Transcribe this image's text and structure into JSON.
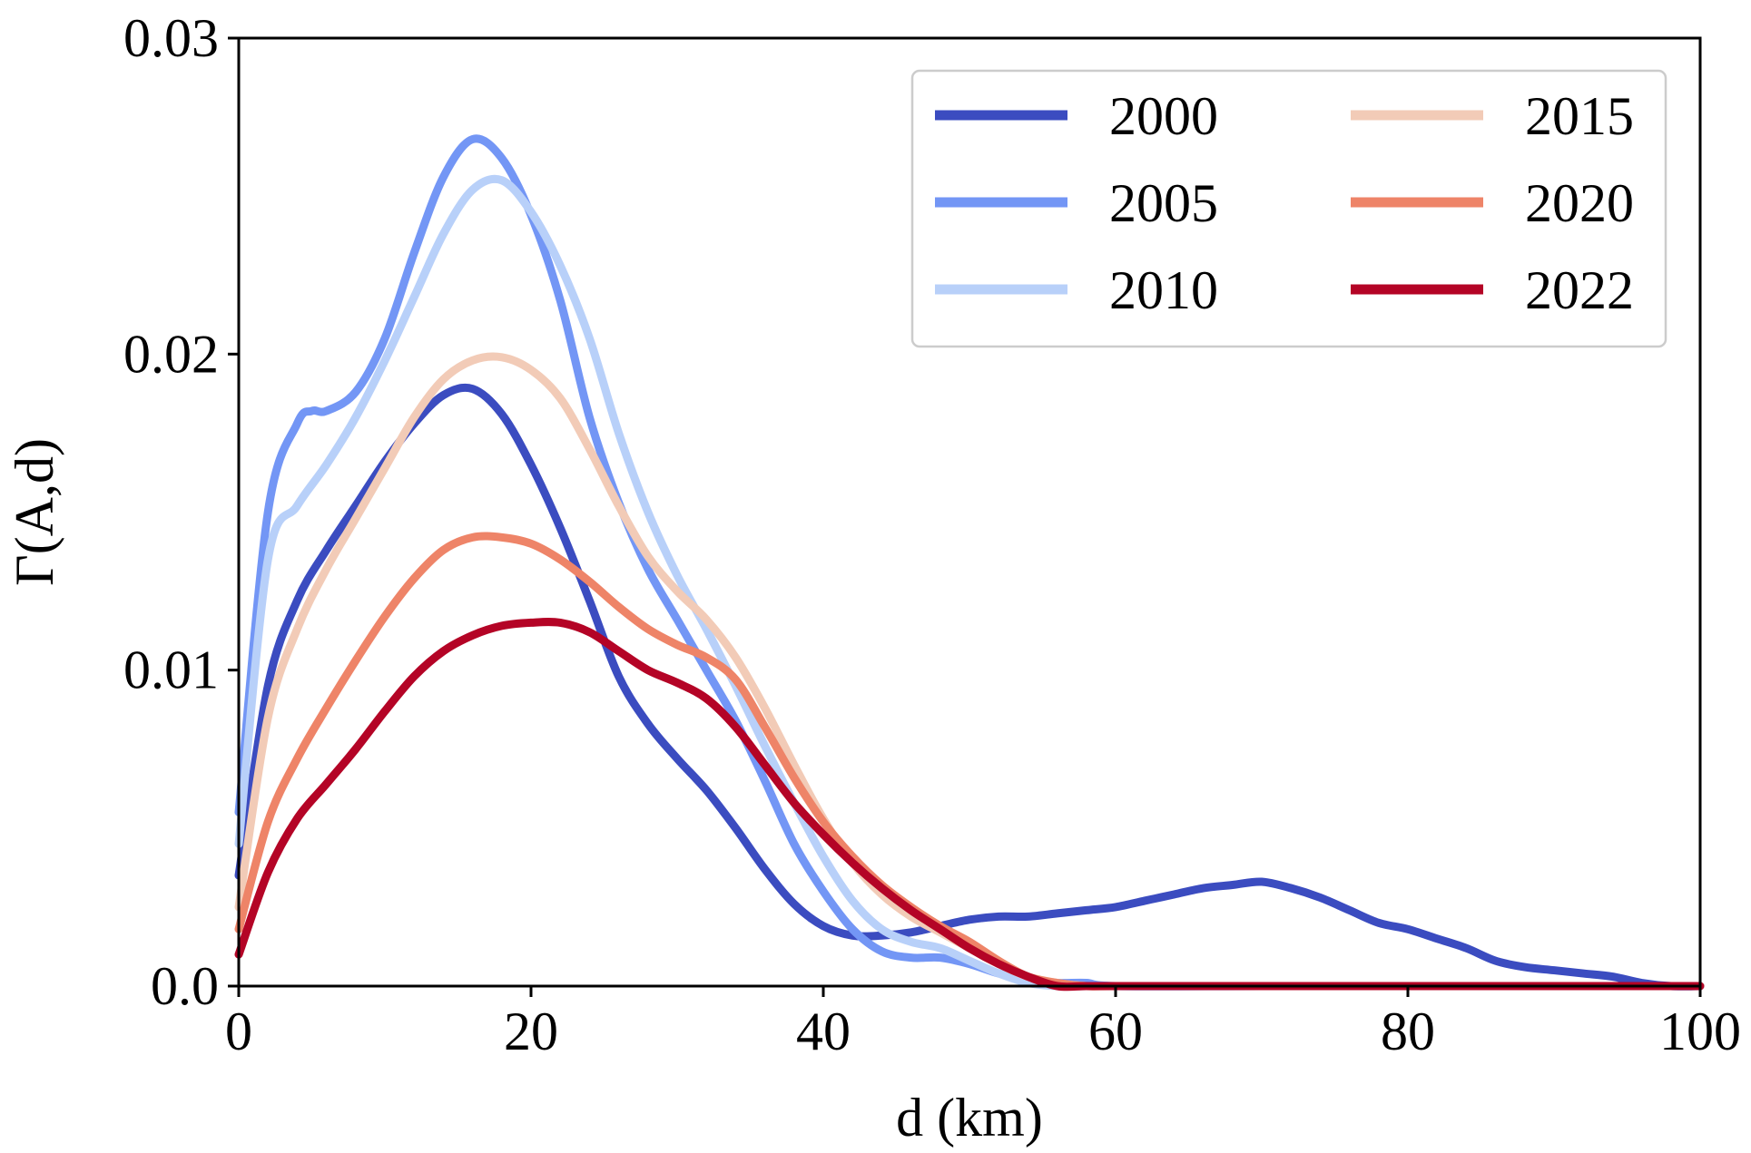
{
  "chart_data": {
    "type": "line",
    "xlabel": "d (km)",
    "ylabel": "Γ(A,d)",
    "xlim": [
      0,
      100
    ],
    "ylim": [
      0,
      0.03
    ],
    "xticks": [
      0,
      20,
      40,
      60,
      80,
      100
    ],
    "xtick_labels": [
      "0",
      "20",
      "40",
      "60",
      "80",
      "100"
    ],
    "yticks": [
      0,
      0.01,
      0.02,
      0.03
    ],
    "ytick_labels": [
      "0.0",
      "0.01",
      "0.02",
      "0.03"
    ],
    "grid": false,
    "legend_position": "top-right",
    "legend_columns": 2,
    "series": [
      {
        "name": "2000",
        "color": "#3b4cc0",
        "x": [
          0,
          2,
          4,
          6,
          8,
          10,
          12,
          14,
          16,
          18,
          20,
          22,
          24,
          26,
          28,
          30,
          32,
          34,
          36,
          38,
          40,
          42,
          44,
          46,
          48,
          50,
          52,
          54,
          56,
          58,
          60,
          62,
          64,
          66,
          68,
          70,
          72,
          74,
          76,
          78,
          80,
          82,
          84,
          86,
          88,
          90,
          92,
          94,
          96,
          98,
          100
        ],
        "values": [
          0.0035,
          0.0095,
          0.0122,
          0.0138,
          0.0152,
          0.0166,
          0.0178,
          0.0187,
          0.0189,
          0.0181,
          0.0165,
          0.0145,
          0.0122,
          0.0098,
          0.0083,
          0.0072,
          0.0062,
          0.005,
          0.0037,
          0.0026,
          0.0019,
          0.0016,
          0.0016,
          0.0017,
          0.0019,
          0.0021,
          0.0022,
          0.0022,
          0.0023,
          0.0024,
          0.0025,
          0.0027,
          0.0029,
          0.0031,
          0.0032,
          0.0033,
          0.0031,
          0.0028,
          0.0024,
          0.002,
          0.0018,
          0.0015,
          0.0012,
          0.0008,
          0.0006,
          0.0005,
          0.0004,
          0.0003,
          0.0001,
          0.0,
          0.0
        ]
      },
      {
        "name": "2005",
        "color": "#7396f5",
        "x": [
          0,
          2,
          4,
          5,
          6,
          8,
          10,
          12,
          14,
          16,
          18,
          20,
          22,
          24,
          26,
          28,
          30,
          32,
          34,
          36,
          38,
          40,
          42,
          44,
          46,
          48,
          50,
          52,
          54,
          56,
          58,
          60,
          70,
          80,
          90,
          100
        ],
        "values": [
          0.0055,
          0.015,
          0.0178,
          0.0182,
          0.0182,
          0.0188,
          0.0205,
          0.0232,
          0.0256,
          0.0268,
          0.0262,
          0.0244,
          0.0217,
          0.018,
          0.0153,
          0.0132,
          0.0116,
          0.01,
          0.0084,
          0.0065,
          0.0045,
          0.003,
          0.0018,
          0.0011,
          0.0009,
          0.0009,
          0.0007,
          0.0004,
          0.0002,
          0.0001,
          0.0001,
          0.0,
          0.0,
          0.0,
          0.0,
          0.0
        ]
      },
      {
        "name": "2010",
        "color": "#b8d0f9",
        "x": [
          0,
          2,
          4,
          6,
          8,
          10,
          12,
          14,
          16,
          18,
          20,
          22,
          24,
          26,
          28,
          30,
          32,
          34,
          36,
          38,
          40,
          42,
          44,
          46,
          48,
          50,
          52,
          54,
          56,
          58,
          60,
          70,
          80,
          90,
          100
        ],
        "values": [
          0.0045,
          0.0135,
          0.0152,
          0.0165,
          0.018,
          0.0198,
          0.0218,
          0.0238,
          0.0252,
          0.0255,
          0.0245,
          0.0228,
          0.0205,
          0.0175,
          0.015,
          0.013,
          0.0113,
          0.0095,
          0.0076,
          0.0058,
          0.0041,
          0.0027,
          0.0018,
          0.0014,
          0.0012,
          0.0008,
          0.0004,
          0.0001,
          0.0,
          0.0,
          0.0,
          0.0,
          0.0,
          0.0,
          0.0
        ]
      },
      {
        "name": "2015",
        "color": "#f2cbb7",
        "x": [
          0,
          2,
          4,
          6,
          8,
          10,
          12,
          14,
          16,
          18,
          20,
          22,
          24,
          26,
          28,
          30,
          32,
          34,
          36,
          38,
          40,
          42,
          44,
          46,
          48,
          50,
          52,
          54,
          56,
          58,
          60,
          70,
          80,
          90,
          100
        ],
        "values": [
          0.0025,
          0.0085,
          0.0113,
          0.0132,
          0.0148,
          0.0164,
          0.018,
          0.0192,
          0.0198,
          0.0199,
          0.0195,
          0.0186,
          0.017,
          0.0152,
          0.0136,
          0.0125,
          0.0116,
          0.0104,
          0.0088,
          0.007,
          0.0053,
          0.0039,
          0.0029,
          0.0022,
          0.0017,
          0.0012,
          0.0007,
          0.0003,
          0.0001,
          0.0,
          0.0,
          0.0,
          0.0,
          0.0,
          0.0
        ]
      },
      {
        "name": "2020",
        "color": "#ee8468",
        "x": [
          0,
          2,
          4,
          6,
          8,
          10,
          12,
          14,
          16,
          18,
          20,
          22,
          24,
          26,
          28,
          30,
          32,
          34,
          36,
          38,
          40,
          42,
          44,
          46,
          48,
          50,
          52,
          54,
          56,
          58,
          60,
          70,
          80,
          90,
          100
        ],
        "values": [
          0.0018,
          0.0052,
          0.0072,
          0.0088,
          0.0103,
          0.0117,
          0.0129,
          0.0138,
          0.0142,
          0.0142,
          0.014,
          0.0135,
          0.0128,
          0.012,
          0.0113,
          0.0108,
          0.0104,
          0.0097,
          0.0082,
          0.0066,
          0.0052,
          0.0041,
          0.0032,
          0.0025,
          0.0019,
          0.0014,
          0.0008,
          0.0003,
          0.0001,
          0.0,
          0.0,
          0.0,
          0.0,
          0.0,
          0.0
        ]
      },
      {
        "name": "2022",
        "color": "#b40426",
        "x": [
          0,
          2,
          4,
          6,
          8,
          10,
          12,
          14,
          16,
          18,
          20,
          22,
          24,
          26,
          28,
          30,
          32,
          34,
          36,
          38,
          40,
          42,
          44,
          46,
          48,
          50,
          52,
          54,
          56,
          58,
          60,
          70,
          80,
          90,
          100
        ],
        "values": [
          0.001,
          0.0036,
          0.0053,
          0.0064,
          0.0075,
          0.0087,
          0.0098,
          0.0106,
          0.0111,
          0.0114,
          0.0115,
          0.0115,
          0.0112,
          0.0106,
          0.01,
          0.0096,
          0.0091,
          0.0082,
          0.007,
          0.0058,
          0.0048,
          0.0039,
          0.0031,
          0.0024,
          0.0018,
          0.0012,
          0.0007,
          0.0003,
          0.0,
          0.0,
          0.0,
          0.0,
          0.0,
          0.0,
          0.0
        ]
      }
    ]
  }
}
